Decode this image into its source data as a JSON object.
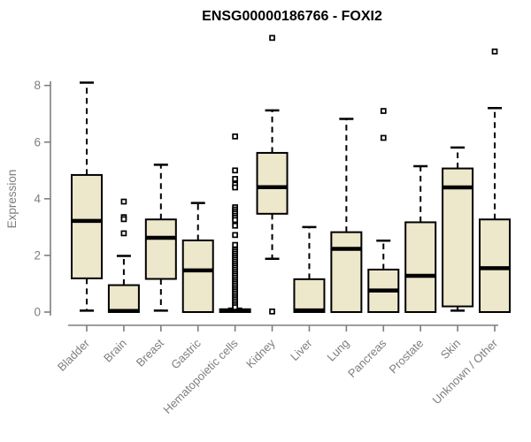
{
  "page": {
    "background": "#FFFFFF"
  },
  "chart_data": {
    "type": "boxplot",
    "title": "ENSG00000186766 - FOXI2",
    "xlabel": "",
    "ylabel": "Expression",
    "ylim": [
      0,
      9.9
    ],
    "yticks": [
      0,
      2,
      4,
      6,
      8
    ],
    "ytick_labels": [
      "0",
      "2",
      "4",
      "6",
      "8"
    ],
    "grid": false,
    "legend": false,
    "outlier_marker": "open-square",
    "colors": {
      "box_fill": "#EDE7CB",
      "box_stroke": "#000000",
      "median": "#000000",
      "whisker": "#000000",
      "axis_text": "#7E7E7E",
      "axis_line": "#7E7E7E",
      "title": "#000000"
    },
    "categories": [
      "Bladder",
      "Brain",
      "Breast",
      "Gastric",
      "Hematopoietic cells",
      "Kidney",
      "Liver",
      "Lung",
      "Pancreas",
      "Prostate",
      "Skin",
      "Unknown / Other"
    ],
    "boxes": [
      {
        "category": "Bladder",
        "whisker_low": 0.05,
        "q1": 1.19,
        "median": 3.22,
        "q3": 4.84,
        "whisker_high": 8.1,
        "outliers": []
      },
      {
        "category": "Brain",
        "whisker_low": 0.0,
        "q1": 0.0,
        "median": 0.04,
        "q3": 0.95,
        "whisker_high": 1.98,
        "outliers": [
          3.9,
          3.35,
          3.28,
          2.78
        ]
      },
      {
        "category": "Breast",
        "whisker_low": 0.05,
        "q1": 1.17,
        "median": 2.62,
        "q3": 3.27,
        "whisker_high": 5.2,
        "outliers": []
      },
      {
        "category": "Gastric",
        "whisker_low": 0.0,
        "q1": 0.0,
        "median": 1.47,
        "q3": 2.53,
        "whisker_high": 3.85,
        "outliers": []
      },
      {
        "category": "Hematopoietic cells",
        "whisker_low": 0.0,
        "q1": 0.0,
        "median": 0.04,
        "q3": 0.1,
        "whisker_high": 0.12,
        "outliers": [
          6.2,
          5.0,
          4.7,
          4.5,
          4.4,
          3.7,
          3.62,
          3.55,
          3.48,
          3.4,
          3.33,
          3.25,
          3.05,
          2.72,
          2.37,
          2.2,
          2.13,
          2.06,
          1.99,
          1.92,
          1.85,
          1.78,
          1.71,
          1.64,
          1.57,
          1.5,
          1.43,
          1.36,
          1.29,
          1.22,
          1.15,
          1.08,
          1.01,
          0.94,
          0.87,
          0.8,
          0.73,
          0.66,
          0.59,
          0.52,
          0.45,
          0.38,
          0.31,
          0.24,
          0.17
        ]
      },
      {
        "category": "Kidney",
        "whisker_low": 1.88,
        "q1": 3.47,
        "median": 4.41,
        "q3": 5.62,
        "whisker_high": 7.12,
        "outliers": [
          9.68,
          0.02
        ]
      },
      {
        "category": "Liver",
        "whisker_low": 0.0,
        "q1": 0.0,
        "median": 0.06,
        "q3": 1.16,
        "whisker_high": 3.0,
        "outliers": []
      },
      {
        "category": "Lung",
        "whisker_low": 0.0,
        "q1": 0.0,
        "median": 2.23,
        "q3": 2.82,
        "whisker_high": 6.82,
        "outliers": []
      },
      {
        "category": "Pancreas",
        "whisker_low": 0.0,
        "q1": 0.0,
        "median": 0.76,
        "q3": 1.5,
        "whisker_high": 2.52,
        "outliers": [
          7.1,
          6.15
        ]
      },
      {
        "category": "Prostate",
        "whisker_low": 0.0,
        "q1": 0.0,
        "median": 1.28,
        "q3": 3.17,
        "whisker_high": 5.15,
        "outliers": []
      },
      {
        "category": "Skin",
        "whisker_low": 0.05,
        "q1": 0.2,
        "median": 4.4,
        "q3": 5.07,
        "whisker_high": 5.81,
        "outliers": []
      },
      {
        "category": "Unknown / Other",
        "whisker_low": 0.0,
        "q1": 0.0,
        "median": 1.55,
        "q3": 3.27,
        "whisker_high": 7.2,
        "outliers": [
          9.2
        ]
      }
    ]
  }
}
